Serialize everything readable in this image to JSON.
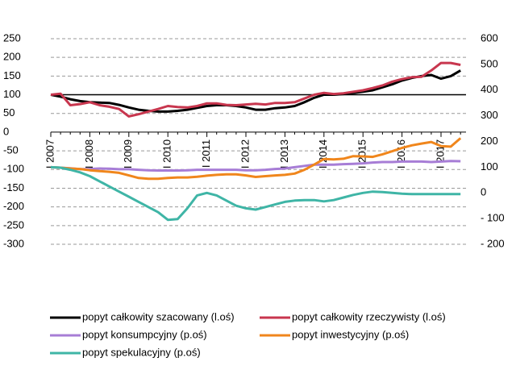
{
  "chart_data": {
    "type": "line",
    "categories": [
      "I 2007",
      null,
      null,
      null,
      "I 2008",
      null,
      null,
      null,
      "I 2009",
      null,
      null,
      null,
      "I 2010",
      null,
      null,
      null,
      "I 2011",
      null,
      null,
      null,
      "I 2012",
      null,
      null,
      null,
      "I 2013",
      null,
      null,
      null,
      "I 2014",
      null,
      null,
      null,
      "I 2015",
      null,
      null,
      null,
      "I 2016",
      null,
      null,
      null,
      "I 2017",
      null,
      null
    ],
    "ylim": [
      -300,
      250
    ],
    "yticks": [
      -300,
      -250,
      -200,
      -150,
      -100,
      -50,
      0,
      50,
      100,
      150,
      200,
      250
    ],
    "y2lim": [
      -200,
      600
    ],
    "y2ticks": [
      {
        "value": -200,
        "label": "- 200"
      },
      {
        "value": -100,
        "label": "- 100"
      },
      0,
      100,
      200,
      300,
      400,
      500,
      600
    ],
    "grid": true,
    "reference_line": 100,
    "legend": "bottom",
    "series": [
      {
        "name": "popyt całkowity szacowany (l.oś)",
        "color": "#000000",
        "values": [
          100,
          95,
          88,
          83,
          80,
          79,
          78,
          73,
          66,
          60,
          57,
          55,
          55,
          57,
          60,
          65,
          70,
          72,
          72,
          70,
          66,
          60,
          60,
          64,
          66,
          70,
          80,
          92,
          100,
          100,
          102,
          105,
          108,
          112,
          120,
          128,
          138,
          145,
          150,
          153,
          143,
          150,
          165
        ]
      },
      {
        "name": "popyt całkowity rzeczywisty (l.oś)",
        "color": "#c8364e",
        "values": [
          100,
          103,
          72,
          75,
          80,
          72,
          68,
          62,
          42,
          48,
          55,
          62,
          70,
          67,
          66,
          70,
          77,
          77,
          73,
          72,
          74,
          76,
          74,
          78,
          78,
          80,
          90,
          100,
          105,
          102,
          104,
          108,
          112,
          118,
          125,
          135,
          142,
          147,
          148,
          165,
          185,
          185,
          180
        ]
      },
      {
        "name": "popyt konsumpcyjny (p.oś)",
        "color": "#a77dd6",
        "axis": "y2",
        "values": [
          100,
          98,
          96,
          92,
          93,
          95,
          94,
          92,
          92,
          90,
          88,
          87,
          87,
          87,
          88,
          90,
          90,
          90,
          90,
          90,
          88,
          88,
          90,
          93,
          95,
          100,
          105,
          110,
          110,
          110,
          112,
          113,
          115,
          118,
          120,
          120,
          122,
          122,
          122,
          120,
          122,
          124,
          123
        ]
      },
      {
        "name": "popyt inwestycyjny (p.oś)",
        "color": "#f0861c",
        "axis": "y2",
        "values": [
          100,
          98,
          95,
          93,
          88,
          85,
          82,
          78,
          68,
          58,
          55,
          55,
          58,
          60,
          60,
          63,
          67,
          70,
          72,
          72,
          68,
          62,
          65,
          68,
          70,
          75,
          90,
          110,
          132,
          130,
          133,
          143,
          142,
          140,
          150,
          162,
          175,
          185,
          192,
          198,
          182,
          180,
          213
        ]
      },
      {
        "name": "popyt spekulacyjny (p.oś)",
        "color": "#3fb5a6",
        "axis": "y2",
        "values": [
          100,
          98,
          90,
          80,
          65,
          45,
          25,
          5,
          -15,
          -35,
          -55,
          -75,
          -105,
          -102,
          -60,
          -10,
          0,
          -10,
          -30,
          -50,
          -60,
          -65,
          -55,
          -45,
          -35,
          -30,
          -28,
          -28,
          -33,
          -28,
          -18,
          -8,
          0,
          5,
          3,
          0,
          -3,
          -5,
          -5,
          -5,
          -5,
          -5,
          -5
        ]
      }
    ]
  }
}
